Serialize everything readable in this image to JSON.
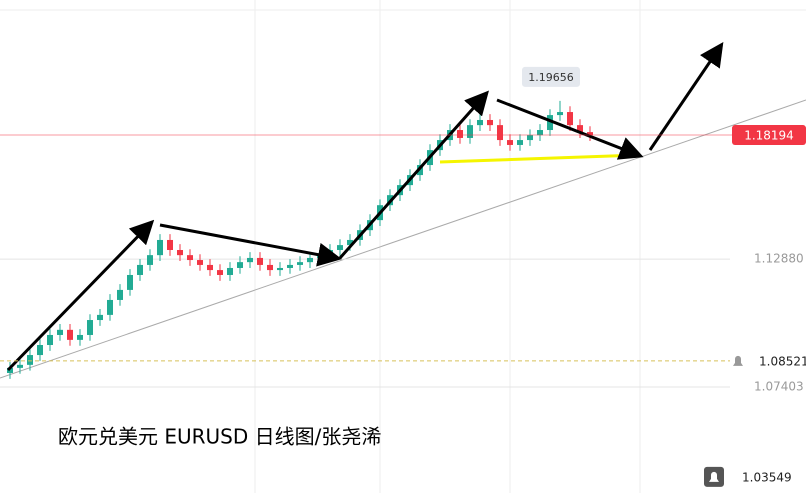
{
  "chart_data": {
    "type": "candlestick",
    "title": "欧元兑美元 EURUSD 日线图/张尧浠",
    "up_color": "#22ab94",
    "down_color": "#f23645",
    "ylim": [
      1.0286,
      1.2398
    ],
    "yticks": [
      {
        "value": 1.1288,
        "label": "1.12880"
      },
      {
        "value": 1.07403,
        "label": "1.07403"
      }
    ],
    "current_price": {
      "value": 1.18194,
      "label": "1.18194",
      "color": "#f23645"
    },
    "alerts": [
      {
        "value": 1.08521,
        "label": "1.08521"
      },
      {
        "value": 1.03549,
        "label": "1.03549"
      }
    ],
    "high_annotation": {
      "value": 1.19656,
      "label": "1.19656"
    },
    "open": [
      1.08,
      1.0822,
      1.0835,
      1.0877,
      1.092,
      1.0963,
      1.0985,
      1.0942,
      1.0963,
      1.1027,
      1.1049,
      1.1113,
      1.1156,
      1.122,
      1.1263,
      1.1305,
      1.137,
      1.1327,
      1.1305,
      1.1284,
      1.1263,
      1.1241,
      1.122,
      1.125,
      1.1275,
      1.1293,
      1.1263,
      1.1241,
      1.125,
      1.1263,
      1.1275,
      1.1293,
      1.1305,
      1.1327,
      1.1348,
      1.137,
      1.1412,
      1.1455,
      1.1519,
      1.1562,
      1.1605,
      1.1648,
      1.1691,
      1.1755,
      1.1798,
      1.1841,
      1.1807,
      1.1862,
      1.1884,
      1.1862,
      1.1798,
      1.1777,
      1.1798,
      1.1819,
      1.1841,
      1.1905,
      1.1918,
      1.1862,
      1.1832
    ],
    "high": [
      1.0847,
      1.086,
      1.0902,
      1.0945,
      1.0988,
      1.101,
      1.101,
      1.0988,
      1.1052,
      1.1074,
      1.1138,
      1.1181,
      1.1245,
      1.1288,
      1.133,
      1.1395,
      1.1395,
      1.1352,
      1.133,
      1.1309,
      1.1288,
      1.1266,
      1.1275,
      1.13,
      1.1318,
      1.1318,
      1.1288,
      1.1275,
      1.1288,
      1.13,
      1.1318,
      1.133,
      1.1352,
      1.1373,
      1.1395,
      1.1437,
      1.148,
      1.1544,
      1.1587,
      1.163,
      1.1673,
      1.1716,
      1.178,
      1.1823,
      1.1866,
      1.1866,
      1.1887,
      1.1909,
      1.1909,
      1.1887,
      1.1823,
      1.1823,
      1.1844,
      1.1866,
      1.193,
      1.1966,
      1.1943,
      1.1887,
      1.1857
    ],
    "low": [
      1.0775,
      1.0797,
      1.081,
      1.0852,
      1.0895,
      1.0938,
      1.0917,
      1.0917,
      1.0938,
      1.1002,
      1.1024,
      1.1088,
      1.1131,
      1.1195,
      1.1238,
      1.128,
      1.1302,
      1.128,
      1.1259,
      1.1238,
      1.1216,
      1.1195,
      1.1195,
      1.1225,
      1.125,
      1.1238,
      1.1216,
      1.1216,
      1.1225,
      1.1238,
      1.125,
      1.1268,
      1.128,
      1.1302,
      1.1323,
      1.1345,
      1.1387,
      1.143,
      1.1494,
      1.1537,
      1.158,
      1.1623,
      1.1666,
      1.173,
      1.1773,
      1.1782,
      1.1782,
      1.1837,
      1.1837,
      1.1773,
      1.1752,
      1.1752,
      1.1773,
      1.1794,
      1.1816,
      1.188,
      1.1837,
      1.1807,
      1.1794
    ],
    "close": [
      1.0822,
      1.0835,
      1.0877,
      1.092,
      1.0963,
      1.0985,
      1.0942,
      1.0963,
      1.1027,
      1.1049,
      1.1113,
      1.1156,
      1.122,
      1.1263,
      1.1305,
      1.137,
      1.1327,
      1.1305,
      1.1284,
      1.1263,
      1.1241,
      1.122,
      1.125,
      1.1275,
      1.1293,
      1.1263,
      1.1241,
      1.125,
      1.1263,
      1.1275,
      1.1293,
      1.1305,
      1.1327,
      1.1348,
      1.137,
      1.1412,
      1.1455,
      1.1519,
      1.1562,
      1.1605,
      1.1648,
      1.1691,
      1.1755,
      1.1798,
      1.1841,
      1.1807,
      1.1862,
      1.1884,
      1.1862,
      1.1798,
      1.1777,
      1.1798,
      1.1819,
      1.1841,
      1.1905,
      1.1918,
      1.1862,
      1.1832,
      1.1819
    ]
  }
}
